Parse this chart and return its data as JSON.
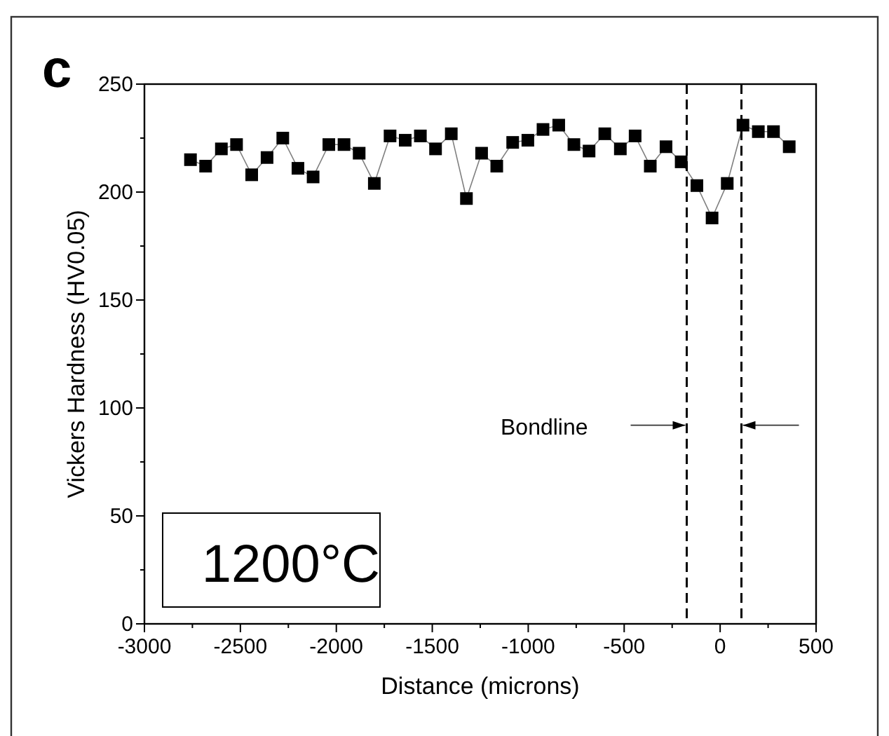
{
  "chart_data": {
    "type": "line",
    "title": "c",
    "xlabel": "Distance (microns)",
    "ylabel": "Vickers Hardness (HV0.05)",
    "x": [
      -2760,
      -2681,
      -2599,
      -2520,
      -2441,
      -2361,
      -2279,
      -2200,
      -2121,
      -2039,
      -1960,
      -1881,
      -1802,
      -1720,
      -1641,
      -1562,
      -1483,
      -1401,
      -1322,
      -1243,
      -1164,
      -1081,
      -1002,
      -923,
      -841,
      -762,
      -683,
      -601,
      -520,
      -443,
      -364,
      -282,
      -203,
      -121,
      -42,
      37,
      119,
      199,
      278,
      360
    ],
    "series": [
      {
        "color": "#000000",
        "values": [
          215,
          212,
          220,
          222,
          208,
          216,
          225,
          211,
          207,
          222,
          222,
          218,
          204,
          226,
          224,
          226,
          220,
          227,
          197,
          218,
          212,
          223,
          224,
          229,
          231,
          222,
          219,
          227,
          220,
          226,
          212,
          221,
          214,
          203,
          188,
          204,
          231,
          228,
          228,
          221
        ]
      }
    ],
    "xlim": [
      -3000,
      500
    ],
    "xticks": [
      -3000,
      {
        "value": -2750,
        "label": null
      },
      -2500,
      {
        "value": -2250,
        "label": null
      },
      -2000,
      {
        "value": -1750,
        "label": null
      },
      -1500,
      {
        "value": -1250,
        "label": null
      },
      -1000,
      {
        "value": -750,
        "label": null
      },
      -500,
      {
        "value": -250,
        "label": null
      },
      0,
      {
        "value": 250,
        "label": null
      },
      500
    ],
    "ylim": [
      0,
      250
    ],
    "yticks": [
      0,
      {
        "value": 25,
        "label": null
      },
      50,
      {
        "value": 75,
        "label": null
      },
      100,
      {
        "value": 125,
        "label": null
      },
      150,
      {
        "value": 175,
        "label": null
      },
      200,
      {
        "value": 225,
        "label": null
      },
      250
    ],
    "marker": "square",
    "line_style": "solid",
    "ref_lines": [
      {
        "axis": "x",
        "value": -174,
        "line_style": "dashed",
        "color": "#000000"
      },
      {
        "axis": "x",
        "value": 111,
        "line_style": "dashed",
        "color": "#000000"
      }
    ],
    "annotations": [
      "Bondline",
      "1200°C"
    ]
  }
}
